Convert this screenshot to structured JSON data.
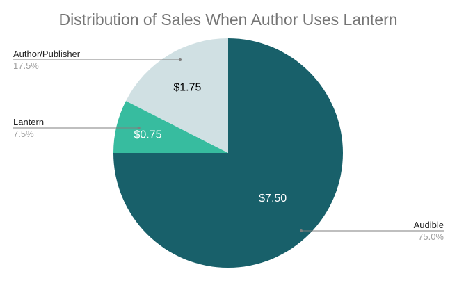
{
  "chart_data": {
    "type": "pie",
    "title": "Distribution of Sales When Author Uses Lantern",
    "slices": [
      {
        "name": "Audible",
        "value": 7.5,
        "value_label": "$7.50",
        "percent_label": "75.0%",
        "color": "#18606a",
        "label_color": "#ffffff"
      },
      {
        "name": "Lantern",
        "value": 0.75,
        "value_label": "$0.75",
        "percent_label": "7.5%",
        "color": "#37bc9f",
        "label_color": "#ffffff"
      },
      {
        "name": "Author/Publisher",
        "value": 1.75,
        "value_label": "$1.75",
        "percent_label": "17.5%",
        "color": "#d0e0e3",
        "label_color": "#000000"
      }
    ],
    "legend": "callouts"
  }
}
